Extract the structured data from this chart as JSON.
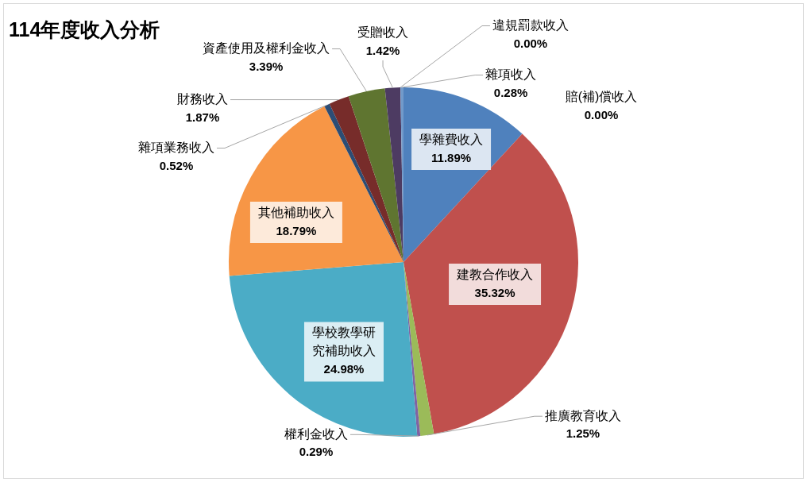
{
  "chart_data": {
    "type": "pie",
    "title": "114年度收入分析",
    "categories": [
      "學雜費收入",
      "建教合作收入",
      "推廣教育收入",
      "權利金收入",
      "學校教學研究補助收入",
      "其他補助收入",
      "雜項業務收入",
      "財務收入",
      "資產使用及權利金收入",
      "受贈收入",
      "違規罰款收入",
      "雜項收入",
      "賠(補)償收入"
    ],
    "values": [
      11.89,
      35.32,
      1.25,
      0.29,
      24.98,
      18.79,
      0.52,
      1.87,
      3.39,
      1.42,
      0.0,
      0.28,
      0.0
    ],
    "colors": [
      "#4f81bd",
      "#c0504d",
      "#9bbb59",
      "#8064a2",
      "#4bacc6",
      "#f79646",
      "#2c4d75",
      "#772c2a",
      "#5f7530",
      "#4d3b62",
      "#276a7c",
      "#729aca",
      "#b65708"
    ],
    "value_labels": [
      "11.89%",
      "35.32%",
      "1.25%",
      "0.29%",
      "24.98%",
      "18.79%",
      "0.52%",
      "1.87%",
      "3.39%",
      "1.42%",
      "0.00%",
      "0.28%",
      "0.00%"
    ]
  }
}
